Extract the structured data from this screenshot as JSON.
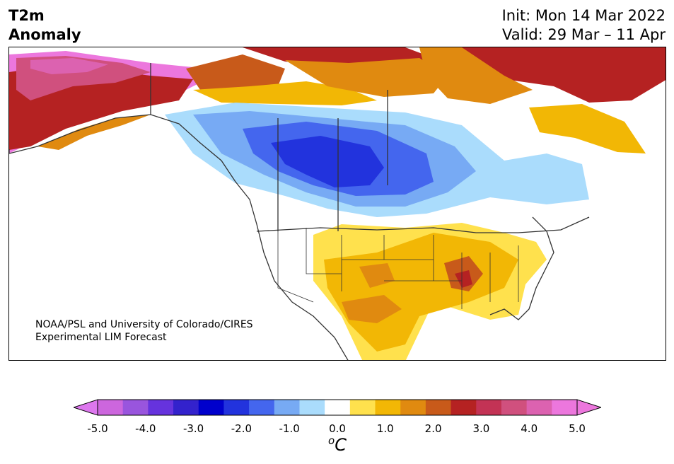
{
  "title": {
    "line1": "T2m",
    "line2": "Anomaly"
  },
  "run": {
    "init": "Init: Mon 14 Mar 2022",
    "valid": "Valid: 29 Mar – 11 Apr"
  },
  "credit": {
    "line1": "NOAA/PSL and University of Colorado/CIRES",
    "line2": "Experimental LIM Forecast"
  },
  "colorbar": {
    "unit_base": "C",
    "unit_sup": "o",
    "ticks": [
      "-5.0",
      "-4.0",
      "-3.0",
      "-2.0",
      "-1.0",
      "0.0",
      "1.0",
      "2.0",
      "3.0",
      "4.0",
      "5.0"
    ],
    "colors": [
      "#cc66dd",
      "#9955dd",
      "#6633dd",
      "#3322cc",
      "#0000cc",
      "#2233dd",
      "#4466ee",
      "#77aaf4",
      "#aadcfc",
      "#ffffff",
      "#ffe14d",
      "#f2b705",
      "#e08a10",
      "#c85a1a",
      "#b52222",
      "#c33355",
      "#d0507e",
      "#dc62b0",
      "#ec77dd"
    ],
    "under_color": "#dd77ee",
    "over_color": "#ec77dd"
  },
  "colors": {
    "cold_1": "#aadcfc",
    "cold_2": "#77aaf4",
    "cold_3": "#4466ee",
    "cold_4": "#2233dd",
    "warm_1": "#ffe14d",
    "warm_2": "#f2b705",
    "warm_3": "#e08a10",
    "warm_4": "#c85a1a",
    "warm_5": "#b52222",
    "warm_6": "#c33355",
    "warm_7": "#d0507e",
    "warm_8": "#dc62b0",
    "warm_9": "#ec77dd"
  }
}
